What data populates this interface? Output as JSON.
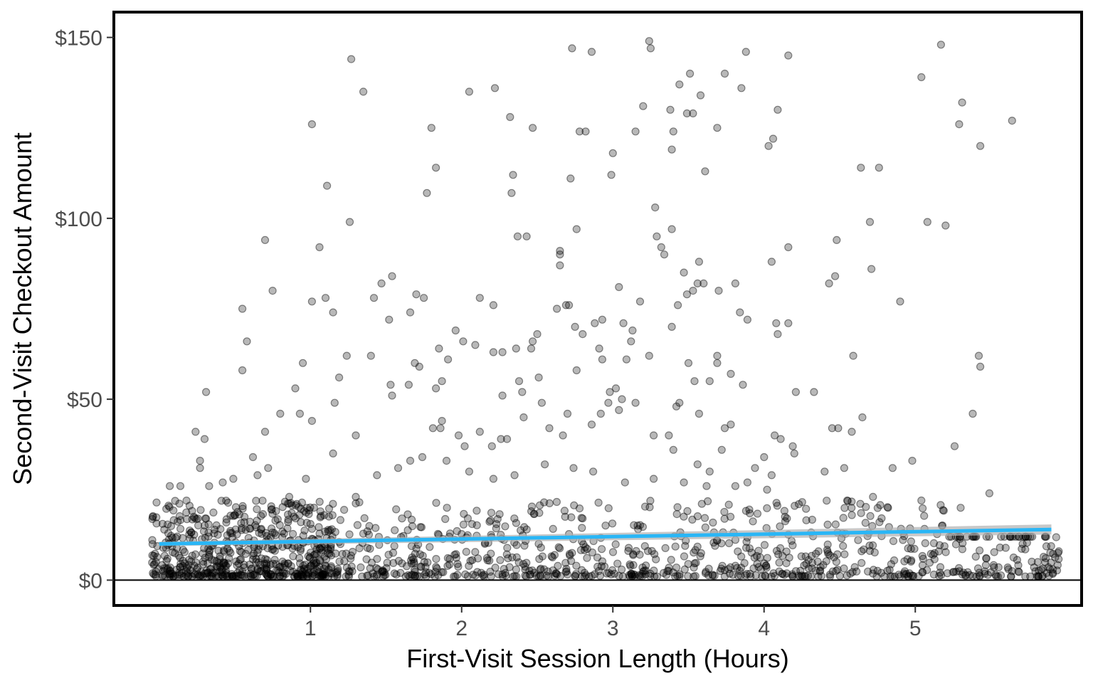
{
  "chart_data": {
    "type": "scatter",
    "title": "",
    "xlabel": "First-Visit Session Length (Hours)",
    "ylabel": "Second-Visit Checkout Amount",
    "xlim": [
      -0.3,
      6.1
    ],
    "ylim": [
      -7,
      157
    ],
    "x_ticks": [
      1,
      2,
      3,
      4,
      5
    ],
    "x_tick_labels": [
      "1",
      "2",
      "3",
      "4",
      "5"
    ],
    "y_ticks": [
      0,
      50,
      100,
      150
    ],
    "y_tick_labels": [
      "$0",
      "$50",
      "$100",
      "$150"
    ],
    "grid": false,
    "legend": "none",
    "zero_line": 0,
    "colors": {
      "points": "#000000",
      "trend": "#29b6f6",
      "band": "#b0b0b0",
      "frame": "#000000"
    },
    "trend_line": {
      "x": [
        0,
        5.9
      ],
      "y": [
        10,
        14
      ],
      "ci_halfwidth_end": [
        0.6,
        1.4
      ]
    },
    "points": [
      [
        1.01,
        126
      ],
      [
        1.11,
        109
      ],
      [
        1.27,
        144
      ],
      [
        1.35,
        135
      ],
      [
        1.26,
        99
      ],
      [
        0.7,
        94
      ],
      [
        1.06,
        92
      ],
      [
        0.75,
        80
      ],
      [
        1.01,
        77
      ],
      [
        1.1,
        78
      ],
      [
        1.15,
        74
      ],
      [
        0.55,
        75
      ],
      [
        0.58,
        66
      ],
      [
        0.55,
        58
      ],
      [
        0.31,
        52
      ],
      [
        0.9,
        53
      ],
      [
        0.95,
        60
      ],
      [
        1.01,
        44
      ],
      [
        0.93,
        46
      ],
      [
        0.8,
        46
      ],
      [
        0.7,
        41
      ],
      [
        0.24,
        41
      ],
      [
        0.3,
        39
      ],
      [
        0.27,
        33
      ],
      [
        0.27,
        31
      ],
      [
        0.42,
        27
      ],
      [
        0.33,
        26
      ],
      [
        0.07,
        26
      ],
      [
        0.14,
        26
      ],
      [
        1.24,
        62
      ],
      [
        1.19,
        56
      ],
      [
        1.16,
        49
      ],
      [
        1.15,
        35
      ],
      [
        1.3,
        40
      ],
      [
        1.4,
        62
      ],
      [
        1.42,
        78
      ],
      [
        1.47,
        82
      ],
      [
        1.54,
        84
      ],
      [
        1.52,
        72
      ],
      [
        1.66,
        74
      ],
      [
        1.7,
        79
      ],
      [
        1.75,
        78
      ],
      [
        1.8,
        125
      ],
      [
        1.83,
        114
      ],
      [
        1.77,
        107
      ],
      [
        2.05,
        135
      ],
      [
        2.22,
        136
      ],
      [
        2.32,
        128
      ],
      [
        2.34,
        112
      ],
      [
        2.33,
        107
      ],
      [
        2.37,
        95
      ],
      [
        2.43,
        95
      ],
      [
        2.47,
        125
      ],
      [
        2.12,
        78
      ],
      [
        2.21,
        76
      ],
      [
        1.96,
        69
      ],
      [
        2.01,
        66
      ],
      [
        1.69,
        60
      ],
      [
        1.72,
        59
      ],
      [
        1.65,
        54
      ],
      [
        1.53,
        54
      ],
      [
        1.54,
        51
      ],
      [
        1.83,
        53
      ],
      [
        1.87,
        55
      ],
      [
        1.85,
        64
      ],
      [
        1.91,
        61
      ],
      [
        2.09,
        65
      ],
      [
        2.21,
        63
      ],
      [
        2.27,
        63
      ],
      [
        2.36,
        64
      ],
      [
        2.47,
        66
      ],
      [
        2.5,
        68
      ],
      [
        2.46,
        64
      ],
      [
        2.51,
        56
      ],
      [
        2.38,
        55
      ],
      [
        2.4,
        52
      ],
      [
        2.27,
        51
      ],
      [
        1.87,
        44
      ],
      [
        1.86,
        42
      ],
      [
        1.81,
        42
      ],
      [
        1.66,
        33
      ],
      [
        1.98,
        40
      ],
      [
        2.02,
        37
      ],
      [
        2.12,
        41
      ],
      [
        2.2,
        37
      ],
      [
        2.26,
        39
      ],
      [
        2.3,
        39
      ],
      [
        2.73,
        147
      ],
      [
        2.86,
        146
      ],
      [
        2.78,
        124
      ],
      [
        2.82,
        124
      ],
      [
        2.72,
        111
      ],
      [
        2.65,
        91
      ],
      [
        2.65,
        90
      ],
      [
        2.65,
        87
      ],
      [
        2.76,
        97
      ],
      [
        2.69,
        76
      ],
      [
        2.63,
        75
      ],
      [
        2.71,
        76
      ],
      [
        2.75,
        70
      ],
      [
        2.8,
        68
      ],
      [
        2.88,
        71
      ],
      [
        2.93,
        72
      ],
      [
        2.91,
        64
      ],
      [
        2.93,
        61
      ],
      [
        2.99,
        112
      ],
      [
        3.0,
        118
      ],
      [
        3.04,
        81
      ],
      [
        3.07,
        71
      ],
      [
        3.12,
        66
      ],
      [
        3.15,
        124
      ],
      [
        3.2,
        131
      ],
      [
        3.24,
        149
      ],
      [
        3.25,
        147
      ],
      [
        3.28,
        103
      ],
      [
        3.29,
        95
      ],
      [
        3.32,
        92
      ],
      [
        3.34,
        90
      ],
      [
        3.39,
        97
      ],
      [
        3.38,
        130
      ],
      [
        3.4,
        124
      ],
      [
        3.39,
        119
      ],
      [
        3.44,
        137
      ],
      [
        3.49,
        129
      ],
      [
        3.51,
        140
      ],
      [
        3.53,
        129
      ],
      [
        3.58,
        134
      ],
      [
        3.61,
        113
      ],
      [
        3.69,
        125
      ],
      [
        3.74,
        140
      ],
      [
        3.85,
        136
      ],
      [
        3.88,
        146
      ],
      [
        4.03,
        120
      ],
      [
        4.06,
        122
      ],
      [
        4.09,
        130
      ],
      [
        4.16,
        145
      ],
      [
        4.16,
        92
      ],
      [
        4.05,
        88
      ],
      [
        3.57,
        88
      ],
      [
        3.47,
        85
      ],
      [
        3.49,
        79
      ],
      [
        3.53,
        80
      ],
      [
        3.56,
        82
      ],
      [
        3.6,
        82
      ],
      [
        3.7,
        80
      ],
      [
        3.81,
        82
      ],
      [
        3.43,
        76
      ],
      [
        3.39,
        70
      ],
      [
        3.18,
        77
      ],
      [
        3.13,
        69
      ],
      [
        3.09,
        61
      ],
      [
        3.24,
        62
      ],
      [
        2.76,
        58
      ],
      [
        3.02,
        53
      ],
      [
        2.98,
        52
      ],
      [
        3.06,
        50
      ],
      [
        3.15,
        49
      ],
      [
        3.42,
        48
      ],
      [
        3.44,
        49
      ],
      [
        3.5,
        60
      ],
      [
        3.54,
        55
      ],
      [
        3.57,
        46
      ],
      [
        3.64,
        55
      ],
      [
        3.69,
        62
      ],
      [
        3.69,
        60
      ],
      [
        3.78,
        57
      ],
      [
        3.86,
        54
      ],
      [
        3.84,
        74
      ],
      [
        3.89,
        72
      ],
      [
        3.74,
        42
      ],
      [
        3.78,
        43
      ],
      [
        4.08,
        71
      ],
      [
        4.16,
        71
      ],
      [
        4.09,
        68
      ],
      [
        4.21,
        52
      ],
      [
        4.33,
        52
      ],
      [
        4.43,
        82
      ],
      [
        4.47,
        84
      ],
      [
        4.48,
        94
      ],
      [
        4.59,
        62
      ],
      [
        4.64,
        114
      ],
      [
        4.76,
        114
      ],
      [
        4.7,
        99
      ],
      [
        4.71,
        86
      ],
      [
        4.9,
        77
      ],
      [
        4.45,
        42
      ],
      [
        4.49,
        42
      ],
      [
        4.58,
        41
      ],
      [
        4.65,
        45
      ],
      [
        5.04,
        139
      ],
      [
        5.08,
        99
      ],
      [
        5.17,
        148
      ],
      [
        5.2,
        98
      ],
      [
        5.29,
        126
      ],
      [
        5.31,
        132
      ],
      [
        5.43,
        120
      ],
      [
        5.42,
        62
      ],
      [
        5.43,
        59
      ],
      [
        5.38,
        46
      ],
      [
        5.26,
        37
      ],
      [
        5.64,
        127
      ],
      [
        4.98,
        33
      ],
      [
        4.85,
        31
      ],
      [
        4.72,
        23
      ],
      [
        5.49,
        24
      ],
      [
        4.4,
        30
      ],
      [
        4.53,
        31
      ],
      [
        4.07,
        40
      ],
      [
        4.11,
        39
      ],
      [
        4.19,
        37
      ],
      [
        4.0,
        34
      ],
      [
        3.94,
        31
      ],
      [
        3.89,
        27
      ],
      [
        4.05,
        29
      ],
      [
        4.2,
        35
      ],
      [
        2.41,
        45
      ],
      [
        2.53,
        49
      ],
      [
        2.7,
        46
      ],
      [
        2.58,
        42
      ],
      [
        2.67,
        40
      ],
      [
        2.86,
        43
      ],
      [
        2.92,
        46
      ],
      [
        2.97,
        49
      ],
      [
        3.04,
        47
      ],
      [
        3.27,
        40
      ],
      [
        3.37,
        40
      ],
      [
        3.4,
        36
      ],
      [
        3.56,
        32
      ],
      [
        3.64,
        30
      ],
      [
        3.72,
        36
      ],
      [
        0.65,
        29
      ],
      [
        0.72,
        31
      ],
      [
        0.62,
        34
      ],
      [
        0.49,
        28
      ],
      [
        0.86,
        23
      ],
      [
        0.97,
        28
      ],
      [
        1.3,
        23
      ],
      [
        1.44,
        29
      ],
      [
        1.58,
        31
      ],
      [
        1.74,
        34
      ],
      [
        1.9,
        33
      ],
      [
        2.05,
        30
      ],
      [
        2.21,
        28
      ],
      [
        2.35,
        29
      ],
      [
        2.55,
        32
      ],
      [
        2.74,
        31
      ],
      [
        2.87,
        30
      ],
      [
        3.08,
        27
      ],
      [
        3.27,
        28
      ],
      [
        3.47,
        27
      ],
      [
        3.62,
        26
      ],
      [
        3.81,
        26
      ],
      [
        4.02,
        25
      ],
      [
        4.23,
        21
      ],
      [
        4.55,
        22
      ],
      [
        4.82,
        20
      ],
      [
        5.04,
        22
      ],
      [
        5.3,
        20
      ],
      [
        5.71,
        10
      ],
      [
        5.56,
        9
      ],
      [
        5.81,
        5
      ],
      [
        5.91,
        2
      ]
    ],
    "dense_band": {
      "description_counts_only": "",
      "x_range": [
        -0.05,
        5.95
      ],
      "y_range": [
        1,
        22
      ],
      "count": 1400
    }
  }
}
